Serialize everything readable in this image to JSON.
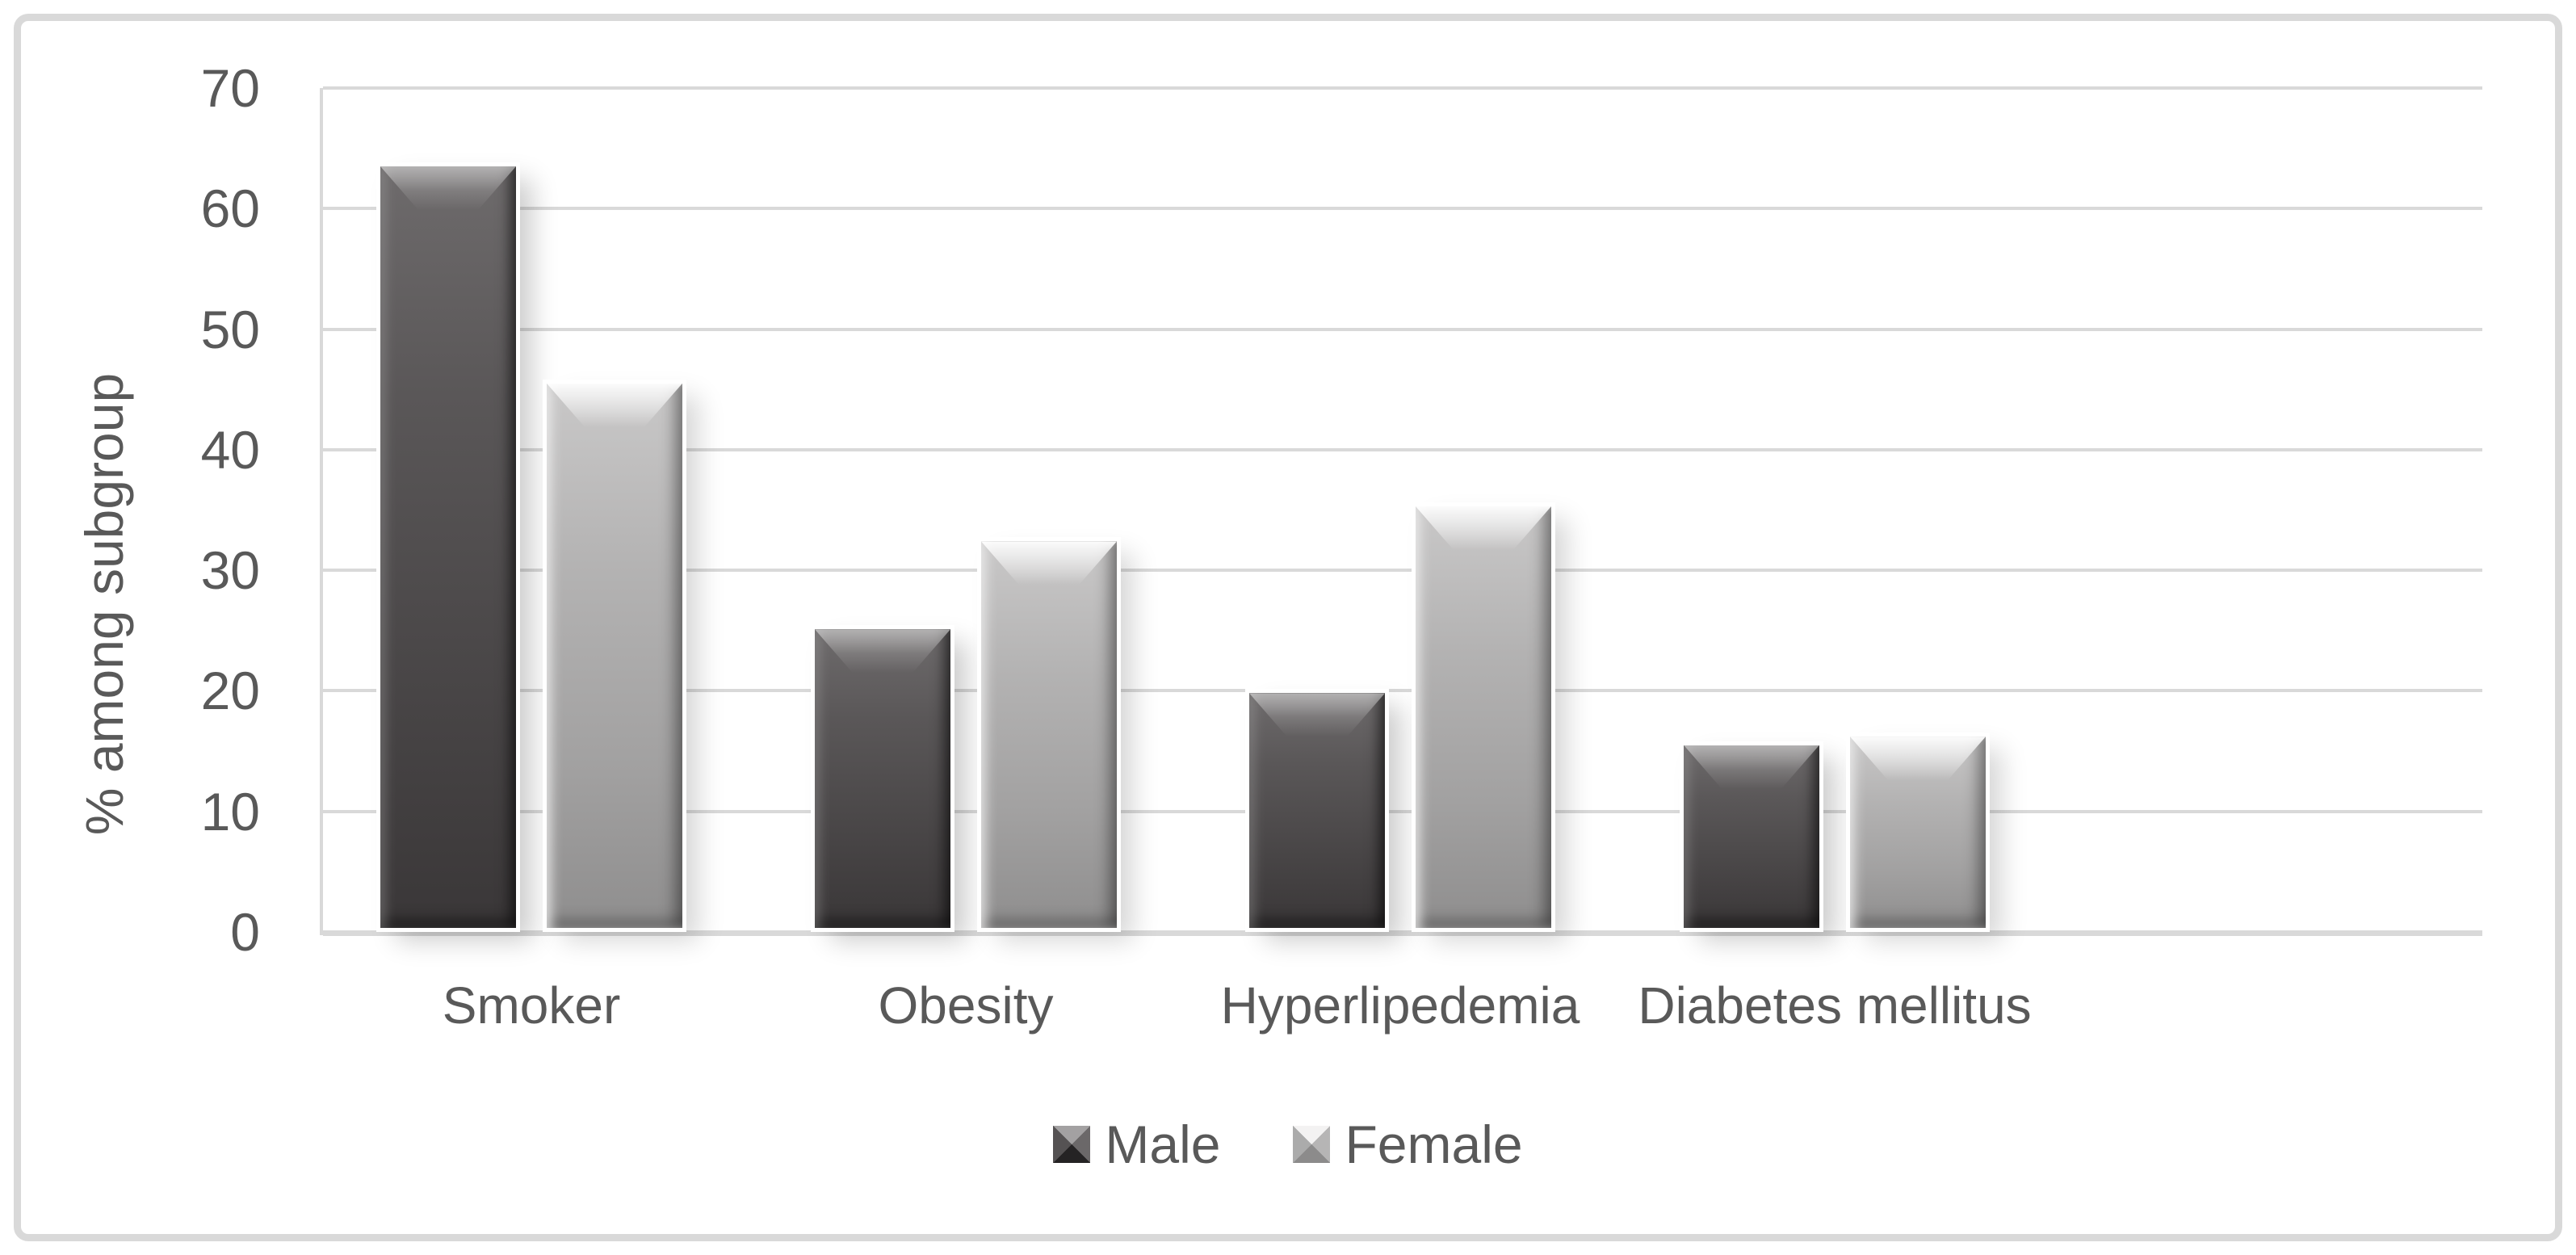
{
  "chart_data": {
    "type": "bar",
    "categories": [
      "Smoker",
      "Obesity",
      "Hyperlipedemia",
      "Diabetes mellitus"
    ],
    "series": [
      {
        "name": "Male",
        "values": [
          63.5,
          25.1,
          19.8,
          15.5
        ]
      },
      {
        "name": "Female",
        "values": [
          45.5,
          32.4,
          35.3,
          16.2
        ]
      }
    ],
    "ylabel": "% among subgroup",
    "xlabel": "",
    "ylim": [
      0,
      70
    ],
    "yticks": [
      0,
      10,
      20,
      30,
      40,
      50,
      60,
      70
    ],
    "grid": "horizontal",
    "legend_position": "bottom",
    "empty_trailing_category_slots": 1,
    "colors": {
      "male_bar": "#4a4748",
      "female_bar": "#b1b0b0",
      "gridline": "#d9d9d9",
      "frame_border": "#d9d9d9",
      "axis_text": "#595959",
      "background": "#ffffff"
    }
  }
}
